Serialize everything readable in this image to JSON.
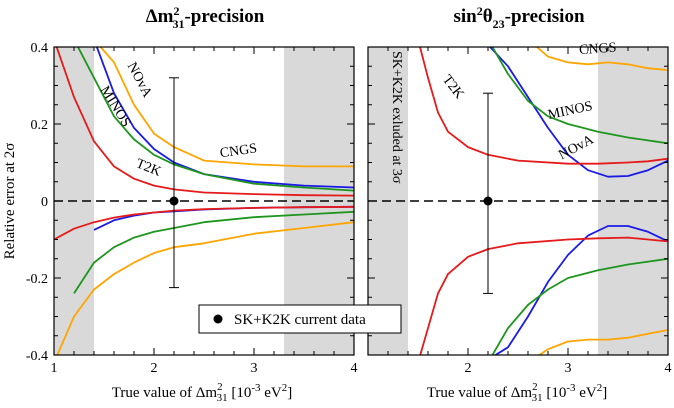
{
  "colors": {
    "NOvA": "#1a1ae6",
    "MINOS": "#1e961e",
    "T2K": "#e61a1a",
    "CNGS": "#ffa500",
    "shade": "#d9d9d9"
  },
  "ylabel": "Relative error at 2σ",
  "legend": {
    "label": "SK+K2K current data"
  },
  "chart_data": [
    {
      "type": "line",
      "title_main": "Δm",
      "title_sup": "2",
      "title_sub": "31",
      "title_suffix": "-precision",
      "xlabel_prefix": "True value of Δm",
      "xlabel_sup": "2",
      "xlabel_sub": "31",
      "xlabel_suffix": " [10",
      "xlabel_exp": "-3",
      "xlabel_unit": " eV",
      "xlabel_unit_sup": "2",
      "xlabel_close": "]",
      "xlim": [
        1,
        4
      ],
      "ylim": [
        -0.4,
        0.4
      ],
      "xticks": [
        "1",
        "2",
        "3",
        "4"
      ],
      "yticks": [
        "-0.4",
        "-0.2",
        "0",
        "0.2",
        "0.4"
      ],
      "shaded_regions": [
        [
          1.0,
          1.4
        ],
        [
          3.3,
          4.0
        ]
      ],
      "data_point": {
        "x": 2.2,
        "y": 0,
        "err_low": -0.225,
        "err_high": 0.32
      },
      "series": [
        {
          "name": "NOvA",
          "x": [
            1.4,
            1.6,
            1.8,
            2.0,
            2.2,
            2.5,
            3.0,
            3.5,
            4.0
          ],
          "upper": [
            0.42,
            0.28,
            0.19,
            0.135,
            0.1,
            0.07,
            0.05,
            0.04,
            0.035
          ],
          "lower": [
            -0.075,
            -0.05,
            -0.038,
            -0.03,
            -0.027,
            -0.022,
            -0.018,
            -0.016,
            -0.015
          ]
        },
        {
          "name": "MINOS",
          "x": [
            1.2,
            1.4,
            1.6,
            1.8,
            2.0,
            2.2,
            2.5,
            3.0,
            3.5,
            4.0
          ],
          "upper": [
            0.42,
            0.32,
            0.22,
            0.16,
            0.12,
            0.095,
            0.07,
            0.045,
            0.035,
            0.027
          ],
          "lower": [
            -0.24,
            -0.16,
            -0.12,
            -0.095,
            -0.08,
            -0.07,
            -0.055,
            -0.042,
            -0.035,
            -0.028
          ]
        },
        {
          "name": "T2K",
          "x": [
            1.0,
            1.2,
            1.4,
            1.6,
            1.8,
            2.0,
            2.2,
            2.5,
            3.0,
            3.5,
            4.0
          ],
          "upper": [
            0.42,
            0.27,
            0.155,
            0.09,
            0.058,
            0.04,
            0.03,
            0.022,
            0.018,
            0.015,
            0.014
          ],
          "lower": [
            -0.1,
            -0.072,
            -0.055,
            -0.043,
            -0.035,
            -0.03,
            -0.025,
            -0.021,
            -0.018,
            -0.016,
            -0.015
          ]
        },
        {
          "name": "CNGS",
          "x": [
            1.0,
            1.2,
            1.4,
            1.6,
            1.8,
            2.0,
            2.2,
            2.5,
            3.0,
            3.5,
            4.0
          ],
          "upper": [
            0.42,
            0.42,
            0.42,
            0.36,
            0.25,
            0.175,
            0.14,
            0.105,
            0.095,
            0.09,
            0.09
          ],
          "lower": [
            -0.42,
            -0.3,
            -0.23,
            -0.19,
            -0.16,
            -0.135,
            -0.12,
            -0.11,
            -0.085,
            -0.07,
            -0.055
          ]
        }
      ],
      "annotations": [
        {
          "text": "NOvA",
          "series": "NOvA",
          "x": 1.82,
          "y": 0.31,
          "angle": 62
        },
        {
          "text": "MINOS",
          "series": "MINOS",
          "x": 1.58,
          "y": 0.24,
          "angle": 58
        },
        {
          "text": "T2K",
          "series": "T2K",
          "x": 1.93,
          "y": 0.077,
          "angle": 22
        },
        {
          "text": "CNGS",
          "series": "CNGS",
          "x": 2.85,
          "y": 0.12,
          "angle": -8
        }
      ]
    },
    {
      "type": "line",
      "title_main": "sin",
      "title_sup": "2",
      "title_mid": "θ",
      "title_sub": "23",
      "title_suffix": "-precision",
      "xlabel_prefix": "True value of Δm",
      "xlabel_sup": "2",
      "xlabel_sub": "31",
      "xlabel_suffix": " [10",
      "xlabel_exp": "-3",
      "xlabel_unit": " eV",
      "xlabel_unit_sup": "2",
      "xlabel_close": "]",
      "xlim": [
        1,
        4
      ],
      "ylim": [
        -0.4,
        0.4
      ],
      "xticks": [
        "2",
        "3",
        "4"
      ],
      "shaded_regions": [
        [
          1.0,
          1.4
        ],
        [
          3.3,
          4.0
        ]
      ],
      "shaded_label": "SK+K2K exluded at 3σ",
      "data_point": {
        "x": 2.2,
        "y": 0,
        "err_low": -0.24,
        "err_high": 0.28
      },
      "series": [
        {
          "name": "NOvA",
          "x": [
            2.15,
            2.4,
            2.6,
            2.8,
            3.0,
            3.2,
            3.4,
            3.6,
            3.8,
            4.0
          ],
          "upper": [
            0.42,
            0.35,
            0.27,
            0.19,
            0.12,
            0.08,
            0.063,
            0.065,
            0.08,
            0.105
          ],
          "lower": [
            -0.42,
            -0.38,
            -0.3,
            -0.21,
            -0.14,
            -0.09,
            -0.065,
            -0.065,
            -0.08,
            -0.105
          ]
        },
        {
          "name": "MINOS",
          "x": [
            2.2,
            2.4,
            2.6,
            2.8,
            3.0,
            3.3,
            3.6,
            4.0
          ],
          "upper": [
            0.42,
            0.33,
            0.26,
            0.22,
            0.2,
            0.18,
            0.165,
            0.15
          ],
          "lower": [
            -0.42,
            -0.33,
            -0.27,
            -0.23,
            -0.2,
            -0.18,
            -0.165,
            -0.15
          ]
        },
        {
          "name": "T2K",
          "x": [
            1.5,
            1.6,
            1.7,
            1.8,
            2.0,
            2.2,
            2.5,
            3.0,
            3.3,
            3.6,
            3.8,
            4.0
          ],
          "upper": [
            0.42,
            0.32,
            0.23,
            0.18,
            0.14,
            0.12,
            0.105,
            0.097,
            0.097,
            0.1,
            0.103,
            0.11
          ],
          "lower": [
            -0.42,
            -0.33,
            -0.24,
            -0.19,
            -0.145,
            -0.125,
            -0.11,
            -0.1,
            -0.097,
            -0.095,
            -0.1,
            -0.105
          ]
        },
        {
          "name": "CNGS",
          "x": [
            2.6,
            2.8,
            3.0,
            3.2,
            3.4,
            3.6,
            3.8,
            4.0
          ],
          "upper": [
            0.42,
            0.375,
            0.36,
            0.355,
            0.36,
            0.355,
            0.345,
            0.34
          ],
          "lower": [
            -0.42,
            -0.385,
            -0.365,
            -0.36,
            -0.36,
            -0.355,
            -0.345,
            -0.335
          ]
        }
      ],
      "annotations": [
        {
          "text": "T2K",
          "series": "T2K",
          "x": 1.82,
          "y": 0.29,
          "angle": 52
        },
        {
          "text": "CNGS",
          "series": "CNGS",
          "x": 3.3,
          "y": 0.385,
          "angle": -4
        },
        {
          "text": "MINOS",
          "series": "MINOS",
          "x": 3.03,
          "y": 0.225,
          "angle": -12
        },
        {
          "text": "NOvA",
          "series": "NOvA",
          "x": 3.1,
          "y": 0.13,
          "angle": -28
        }
      ]
    }
  ]
}
